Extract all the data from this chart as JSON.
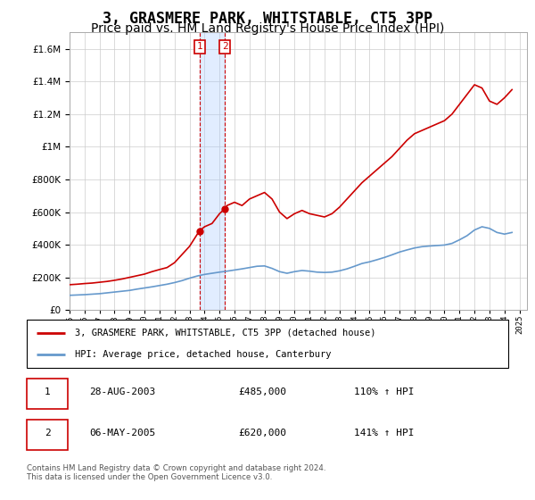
{
  "title": "3, GRASMERE PARK, WHITSTABLE, CT5 3PP",
  "subtitle": "Price paid vs. HM Land Registry's House Price Index (HPI)",
  "title_fontsize": 12,
  "subtitle_fontsize": 10,
  "ytick_values": [
    0,
    200000,
    400000,
    600000,
    800000,
    1000000,
    1200000,
    1400000,
    1600000
  ],
  "ylim": [
    0,
    1700000
  ],
  "xlim_start": 1995,
  "xlim_end": 2025.5,
  "background_color": "#ffffff",
  "grid_color": "#cccccc",
  "red_line_color": "#cc0000",
  "blue_line_color": "#6699cc",
  "transaction1_x": 2003.66,
  "transaction1_y": 485000,
  "transaction2_x": 2005.35,
  "transaction2_y": 620000,
  "transaction1_date": "28-AUG-2003",
  "transaction1_price": "£485,000",
  "transaction1_hpi": "110% ↑ HPI",
  "transaction2_date": "06-MAY-2005",
  "transaction2_price": "£620,000",
  "transaction2_hpi": "141% ↑ HPI",
  "legend_red_label": "3, GRASMERE PARK, WHITSTABLE, CT5 3PP (detached house)",
  "legend_blue_label": "HPI: Average price, detached house, Canterbury",
  "footer": "Contains HM Land Registry data © Crown copyright and database right 2024.\nThis data is licensed under the Open Government Licence v3.0.",
  "red_line_x": [
    1995,
    1995.5,
    1996,
    1996.5,
    1997,
    1997.5,
    1998,
    1998.5,
    1999,
    1999.5,
    2000,
    2000.5,
    2001,
    2001.5,
    2002,
    2002.5,
    2003,
    2003.66,
    2004,
    2004.5,
    2005,
    2005.35,
    2005.5,
    2006,
    2006.5,
    2007,
    2007.5,
    2008,
    2008.5,
    2009,
    2009.5,
    2010,
    2010.5,
    2011,
    2011.5,
    2012,
    2012.5,
    2013,
    2013.5,
    2014,
    2014.5,
    2015,
    2015.5,
    2016,
    2016.5,
    2017,
    2017.5,
    2018,
    2018.5,
    2019,
    2019.5,
    2020,
    2020.5,
    2021,
    2021.5,
    2022,
    2022.5,
    2023,
    2023.5,
    2024,
    2024.5
  ],
  "red_line_y": [
    155000,
    158000,
    162000,
    165000,
    170000,
    175000,
    182000,
    190000,
    200000,
    210000,
    220000,
    235000,
    248000,
    260000,
    290000,
    340000,
    390000,
    485000,
    510000,
    530000,
    590000,
    620000,
    640000,
    660000,
    640000,
    680000,
    700000,
    720000,
    680000,
    600000,
    560000,
    590000,
    610000,
    590000,
    580000,
    570000,
    590000,
    630000,
    680000,
    730000,
    780000,
    820000,
    860000,
    900000,
    940000,
    990000,
    1040000,
    1080000,
    1100000,
    1120000,
    1140000,
    1160000,
    1200000,
    1260000,
    1320000,
    1380000,
    1360000,
    1280000,
    1260000,
    1300000,
    1350000
  ],
  "blue_line_x": [
    1995,
    1995.5,
    1996,
    1996.5,
    1997,
    1997.5,
    1998,
    1998.5,
    1999,
    1999.5,
    2000,
    2000.5,
    2001,
    2001.5,
    2002,
    2002.5,
    2003,
    2003.5,
    2004,
    2004.5,
    2005,
    2005.5,
    2006,
    2006.5,
    2007,
    2007.5,
    2008,
    2008.5,
    2009,
    2009.5,
    2010,
    2010.5,
    2011,
    2011.5,
    2012,
    2012.5,
    2013,
    2013.5,
    2014,
    2014.5,
    2015,
    2015.5,
    2016,
    2016.5,
    2017,
    2017.5,
    2018,
    2018.5,
    2019,
    2019.5,
    2020,
    2020.5,
    2021,
    2021.5,
    2022,
    2022.5,
    2023,
    2023.5,
    2024,
    2024.5
  ],
  "blue_line_y": [
    90000,
    92000,
    94000,
    97000,
    100000,
    105000,
    110000,
    115000,
    120000,
    128000,
    135000,
    142000,
    150000,
    158000,
    168000,
    180000,
    195000,
    208000,
    218000,
    225000,
    232000,
    238000,
    245000,
    252000,
    260000,
    268000,
    270000,
    255000,
    235000,
    225000,
    235000,
    242000,
    238000,
    232000,
    230000,
    232000,
    240000,
    252000,
    268000,
    285000,
    295000,
    308000,
    322000,
    338000,
    355000,
    368000,
    380000,
    388000,
    392000,
    395000,
    398000,
    408000,
    430000,
    455000,
    490000,
    510000,
    500000,
    475000,
    465000,
    475000
  ]
}
